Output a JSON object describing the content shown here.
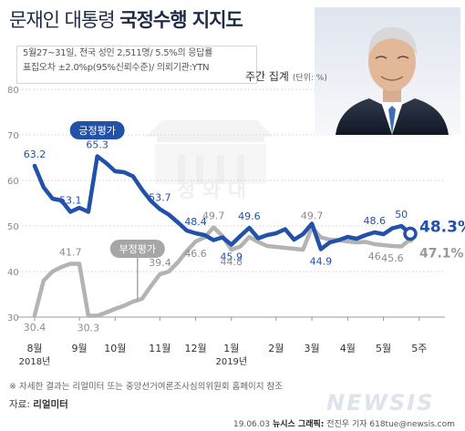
{
  "title": {
    "normal": "문재인 대통령",
    "bold": "국정수행 지지도"
  },
  "survey_info": {
    "line1": "5월27~31일, 전국 성인 2,511명/ 5.5%의 응답률",
    "line2": "표집오차 ±2.0%p(95%신뢰수준)/ 의뢰기관:YTN"
  },
  "aggregation": {
    "label": "주간 집계",
    "unit": "(단위: %)"
  },
  "footnote": "※ 자세한 결과는 리얼미터 또는 중앙선거여론조사심의위원회 홈페이지 참조",
  "source": {
    "label": "자료:",
    "name": "리얼미터"
  },
  "credit": {
    "date": "19.06.03",
    "agency": "뉴시스 그래픽:",
    "author": "전진우 기자 618tue@newsis.com"
  },
  "watermark": "NEWSIS",
  "building_watermark": "청 와 대",
  "colors": {
    "approval": "#2151a8",
    "disapproval": "#b3b3b3",
    "approval_label_bg": "#2151a8",
    "disapproval_label_bg": "#a6a6a6"
  },
  "chart_data": {
    "type": "line",
    "ylim": [
      30,
      80
    ],
    "yticks": [
      "30",
      "40",
      "50",
      "60",
      "70",
      "80"
    ],
    "grid": true,
    "x_labels": [
      {
        "text": "8월",
        "index": 0
      },
      {
        "text": "9월",
        "index": 5
      },
      {
        "text": "10월",
        "index": 9
      },
      {
        "text": "11월",
        "index": 14
      },
      {
        "text": "12월",
        "index": 18
      },
      {
        "text": "1월",
        "index": 22
      },
      {
        "text": "2월",
        "index": 27
      },
      {
        "text": "3월",
        "index": 31
      },
      {
        "text": "4월",
        "index": 35
      },
      {
        "text": "5월",
        "index": 39
      },
      {
        "text": "5주",
        "index": 43
      }
    ],
    "year_labels": [
      {
        "text": "2018년",
        "index": 0
      },
      {
        "text": "2019년",
        "index": 22
      }
    ],
    "series": [
      {
        "name": "긍정평가",
        "values": [
          63.2,
          58.5,
          56.0,
          55.6,
          53.1,
          54.0,
          53.1,
          65.3,
          63.8,
          62.0,
          61.8,
          60.9,
          58.0,
          55.5,
          53.7,
          52.5,
          50.8,
          49.0,
          48.4,
          48.0,
          46.9,
          47.5,
          45.9,
          47.8,
          49.6,
          47.3,
          48.0,
          48.4,
          49.3,
          47.0,
          48.2,
          50.5,
          44.9,
          46.4,
          46.9,
          47.6,
          47.2,
          48.0,
          48.6,
          48.2,
          49.5,
          50.0,
          48.3
        ],
        "labels": [
          {
            "text": "63.2",
            "index": 0
          },
          {
            "text": "53.1",
            "index": 4
          },
          {
            "text": "65.3",
            "index": 7
          },
          {
            "text": "53.7",
            "index": 14
          },
          {
            "text": "48.4",
            "index": 18
          },
          {
            "text": "45.9",
            "index": 22
          },
          {
            "text": "49.6",
            "index": 24
          },
          {
            "text": "44.9",
            "index": 32
          },
          {
            "text": "48.6",
            "index": 38
          },
          {
            "text": "50",
            "index": 41
          },
          {
            "text": "48.3%",
            "index": 42
          }
        ]
      },
      {
        "name": "부정평가",
        "values": [
          30.4,
          38.0,
          40.0,
          41.0,
          41.7,
          41.7,
          30.3,
          30.3,
          31.0,
          31.8,
          32.5,
          33.4,
          34.0,
          36.8,
          39.4,
          40.0,
          42.0,
          44.5,
          46.6,
          47.5,
          49.7,
          47.8,
          44.8,
          45.5,
          47.6,
          46.5,
          45.6,
          45.4,
          45.2,
          45.0,
          44.8,
          49.7,
          47.5,
          47.0,
          46.9,
          46.6,
          46.4,
          46.5,
          46.0,
          45.8,
          45.6,
          45.5,
          47.1
        ],
        "labels": [
          {
            "text": "30.4",
            "index": 0
          },
          {
            "text": "41.7",
            "index": 4
          },
          {
            "text": "30.3",
            "index": 6
          },
          {
            "text": "39.4",
            "index": 14
          },
          {
            "text": "46.6",
            "index": 18
          },
          {
            "text": "49.7",
            "index": 20
          },
          {
            "text": "44.8",
            "index": 22
          },
          {
            "text": "49.7",
            "index": 31
          },
          {
            "text": "46",
            "index": 38
          },
          {
            "text": "45.6",
            "index": 40
          },
          {
            "text": "47.1%",
            "index": 42
          }
        ]
      }
    ]
  }
}
